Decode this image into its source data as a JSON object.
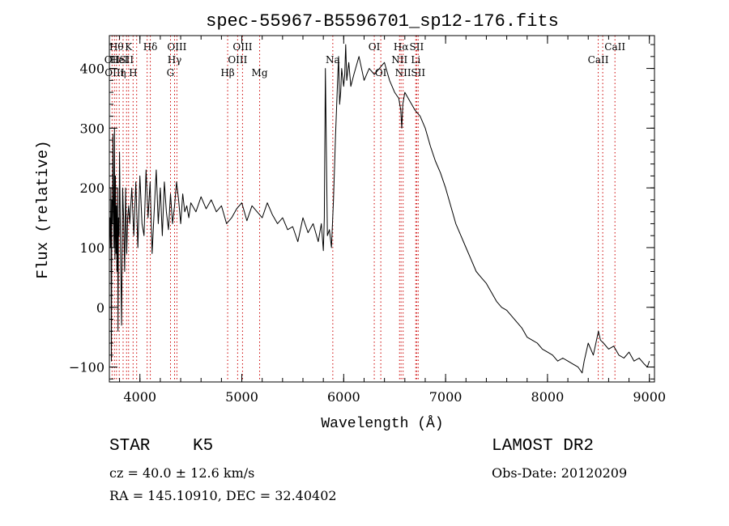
{
  "chart_data": {
    "type": "line",
    "title": "spec-55967-B5596701_sp12-176.fits",
    "xlabel": "Wavelength (Å)",
    "ylabel": "Flux (relative)",
    "xlim": [
      3700,
      9050
    ],
    "ylim": [
      -125,
      455
    ],
    "xticks": [
      {
        "value": 4000,
        "label": "4000"
      },
      {
        "value": 5000,
        "label": "5000"
      },
      {
        "value": 6000,
        "label": "6000"
      },
      {
        "value": 7000,
        "label": "7000"
      },
      {
        "value": 8000,
        "label": "8000"
      },
      {
        "value": 9000,
        "label": "9000"
      }
    ],
    "yticks": [
      {
        "value": -100,
        "label": "−100"
      },
      {
        "value": 0,
        "label": "0"
      },
      {
        "value": 100,
        "label": "100"
      },
      {
        "value": 200,
        "label": "200"
      },
      {
        "value": 300,
        "label": "300"
      },
      {
        "value": 400,
        "label": "400"
      }
    ],
    "grid": false,
    "series": [
      {
        "color": "#000000",
        "x": [
          3700,
          3705,
          3710,
          3715,
          3720,
          3725,
          3730,
          3735,
          3740,
          3745,
          3750,
          3755,
          3760,
          3765,
          3770,
          3775,
          3780,
          3785,
          3790,
          3795,
          3800,
          3810,
          3820,
          3830,
          3840,
          3850,
          3860,
          3870,
          3880,
          3890,
          3900,
          3920,
          3940,
          3960,
          3980,
          4000,
          4020,
          4040,
          4060,
          4080,
          4100,
          4120,
          4140,
          4160,
          4180,
          4200,
          4220,
          4240,
          4260,
          4280,
          4300,
          4320,
          4340,
          4360,
          4380,
          4400,
          4420,
          4440,
          4460,
          4480,
          4500,
          4550,
          4600,
          4650,
          4700,
          4750,
          4800,
          4850,
          4900,
          4950,
          5000,
          5050,
          5100,
          5150,
          5200,
          5250,
          5300,
          5350,
          5400,
          5450,
          5500,
          5550,
          5600,
          5650,
          5700,
          5750,
          5780,
          5800,
          5810,
          5820,
          5840,
          5860,
          5880,
          5900,
          5920,
          5940,
          5950,
          5960,
          5970,
          5980,
          6000,
          6010,
          6020,
          6030,
          6050,
          6070,
          6100,
          6150,
          6200,
          6250,
          6300,
          6350,
          6400,
          6450,
          6500,
          6540,
          6560,
          6570,
          6580,
          6600,
          6650,
          6700,
          6750,
          6800,
          6850,
          6900,
          6950,
          7000,
          7050,
          7100,
          7150,
          7200,
          7250,
          7300,
          7350,
          7400,
          7450,
          7500,
          7550,
          7600,
          7650,
          7700,
          7750,
          7800,
          7850,
          7900,
          7950,
          8000,
          8050,
          8100,
          8150,
          8200,
          8250,
          8300,
          8340,
          8360,
          8400,
          8450,
          8500,
          8520,
          8550,
          8600,
          8650,
          8700,
          8750,
          8800,
          8850,
          8900,
          8950,
          8980,
          9000
        ],
        "y": [
          120,
          150,
          100,
          200,
          -90,
          180,
          140,
          290,
          160,
          100,
          300,
          80,
          220,
          90,
          170,
          60,
          200,
          -40,
          150,
          120,
          260,
          100,
          -30,
          200,
          150,
          60,
          200,
          90,
          150,
          170,
          140,
          200,
          120,
          210,
          100,
          220,
          140,
          120,
          230,
          150,
          210,
          90,
          160,
          230,
          140,
          200,
          120,
          210,
          160,
          130,
          190,
          140,
          170,
          210,
          180,
          140,
          190,
          160,
          170,
          150,
          175,
          160,
          185,
          165,
          180,
          160,
          170,
          140,
          150,
          165,
          175,
          145,
          170,
          160,
          150,
          175,
          155,
          140,
          150,
          130,
          135,
          110,
          150,
          125,
          140,
          110,
          140,
          95,
          150,
          400,
          120,
          130,
          100,
          180,
          290,
          380,
          420,
          340,
          360,
          400,
          370,
          390,
          440,
          380,
          410,
          370,
          390,
          420,
          380,
          400,
          390,
          400,
          410,
          380,
          360,
          350,
          330,
          300,
          340,
          360,
          345,
          330,
          320,
          300,
          270,
          245,
          225,
          200,
          170,
          140,
          120,
          100,
          80,
          60,
          50,
          40,
          25,
          10,
          0,
          -5,
          -15,
          -25,
          -35,
          -50,
          -55,
          -60,
          -70,
          -75,
          -80,
          -90,
          -85,
          -90,
          -95,
          -100,
          -110,
          -90,
          -60,
          -80,
          -40,
          -55,
          -60,
          -70,
          -65,
          -80,
          -85,
          -75,
          -90,
          -85,
          -95,
          -100,
          -90
        ]
      }
    ],
    "lines": [
      {
        "x": 3727,
        "label": "OII",
        "row": 1
      },
      {
        "x": 3750,
        "label": "OIII",
        "row": 2
      },
      {
        "x": 3770,
        "label": "Hθ",
        "row": 0
      },
      {
        "x": 3797,
        "label": "HeI",
        "row": 1
      },
      {
        "x": 3835,
        "label": "η",
        "row": 2
      },
      {
        "x": 3869,
        "label": "SII",
        "row": 1
      },
      {
        "x": 3889,
        "label": "K",
        "row": 0
      },
      {
        "x": 3933,
        "label": "H",
        "row": 2
      },
      {
        "x": 3968,
        "label": "",
        "row": 0
      },
      {
        "x": 4071,
        "label": "",
        "row": 0
      },
      {
        "x": 4102,
        "label": "Hδ",
        "row": 0
      },
      {
        "x": 4300,
        "label": "G",
        "row": 2
      },
      {
        "x": 4340,
        "label": "Hγ",
        "row": 1
      },
      {
        "x": 4363,
        "label": "OIII",
        "row": 0
      },
      {
        "x": 4861,
        "label": "Hβ",
        "row": 2
      },
      {
        "x": 4959,
        "label": "OIII",
        "row": 1
      },
      {
        "x": 5007,
        "label": "OIII",
        "row": 0
      },
      {
        "x": 5175,
        "label": "Mg",
        "row": 2
      },
      {
        "x": 5893,
        "label": "Na",
        "row": 1
      },
      {
        "x": 6300,
        "label": "OI",
        "row": 0
      },
      {
        "x": 6364,
        "label": "OI",
        "row": 2
      },
      {
        "x": 6548,
        "label": "NII",
        "row": 1
      },
      {
        "x": 6563,
        "label": "Hα",
        "row": 0
      },
      {
        "x": 6583,
        "label": "NII",
        "row": 2
      },
      {
        "x": 6707,
        "label": "Li",
        "row": 1
      },
      {
        "x": 6716,
        "label": "SII",
        "row": 0
      },
      {
        "x": 6731,
        "label": "SII",
        "row": 2
      },
      {
        "x": 8498,
        "label": "CaII",
        "row": 1
      },
      {
        "x": 8542,
        "label": "",
        "row": 1
      },
      {
        "x": 8662,
        "label": "CaII",
        "row": 0
      }
    ],
    "line_color": "#cc0000",
    "series_color": "#000000"
  },
  "info": {
    "object_class": "STAR",
    "subclass": "K5",
    "survey": "LAMOST DR2",
    "cz": "cz = 40.0 ± 12.6 km/s",
    "obs_date": "Obs-Date: 20120209",
    "coords": "RA = 145.10910, DEC =  32.40402"
  }
}
